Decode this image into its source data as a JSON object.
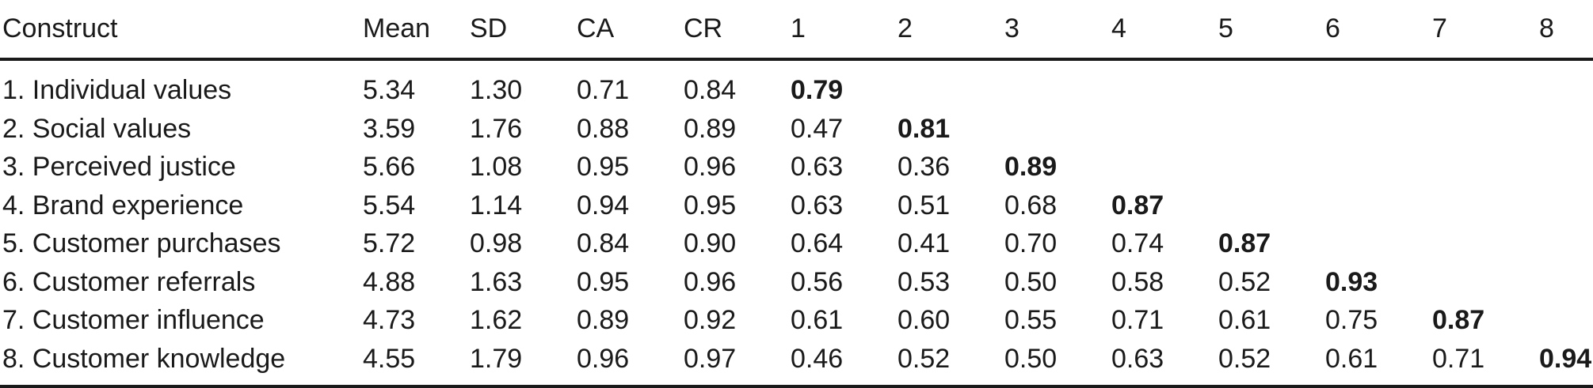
{
  "table": {
    "columns": [
      "Construct",
      "Mean",
      "SD",
      "CA",
      "CR",
      "1",
      "2",
      "3",
      "4",
      "5",
      "6",
      "7",
      "8"
    ],
    "bold_diagonal": true,
    "rows": [
      {
        "construct": "1. Individual values",
        "mean": "5.34",
        "sd": "1.30",
        "ca": "0.71",
        "cr": "0.84",
        "correlations": [
          "0.79"
        ]
      },
      {
        "construct": "2. Social values",
        "mean": "3.59",
        "sd": "1.76",
        "ca": "0.88",
        "cr": "0.89",
        "correlations": [
          "0.47",
          "0.81"
        ]
      },
      {
        "construct": "3. Perceived justice",
        "mean": "5.66",
        "sd": "1.08",
        "ca": "0.95",
        "cr": "0.96",
        "correlations": [
          "0.63",
          "0.36",
          "0.89"
        ]
      },
      {
        "construct": "4. Brand experience",
        "mean": "5.54",
        "sd": "1.14",
        "ca": "0.94",
        "cr": "0.95",
        "correlations": [
          "0.63",
          "0.51",
          "0.68",
          "0.87"
        ]
      },
      {
        "construct": "5. Customer purchases",
        "mean": "5.72",
        "sd": "0.98",
        "ca": "0.84",
        "cr": "0.90",
        "correlations": [
          "0.64",
          "0.41",
          "0.70",
          "0.74",
          "0.87"
        ]
      },
      {
        "construct": "6. Customer referrals",
        "mean": "4.88",
        "sd": "1.63",
        "ca": "0.95",
        "cr": "0.96",
        "correlations": [
          "0.56",
          "0.53",
          "0.50",
          "0.58",
          "0.52",
          "0.93"
        ]
      },
      {
        "construct": "7. Customer influence",
        "mean": "4.73",
        "sd": "1.62",
        "ca": "0.89",
        "cr": "0.92",
        "correlations": [
          "0.61",
          "0.60",
          "0.55",
          "0.71",
          "0.61",
          "0.75",
          "0.87"
        ]
      },
      {
        "construct": "8. Customer knowledge",
        "mean": "4.55",
        "sd": "1.79",
        "ca": "0.96",
        "cr": "0.97",
        "correlations": [
          "0.46",
          "0.52",
          "0.50",
          "0.63",
          "0.52",
          "0.61",
          "0.71",
          "0.94"
        ]
      }
    ]
  },
  "colors": {
    "text": "#1a1a1a",
    "rule": "#1a1a1a",
    "background": "#ffffff"
  }
}
